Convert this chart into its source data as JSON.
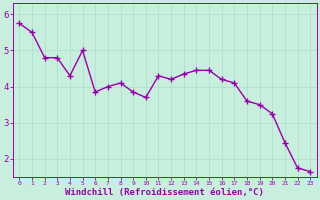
{
  "x": [
    0,
    1,
    2,
    3,
    4,
    5,
    6,
    7,
    8,
    9,
    10,
    11,
    12,
    13,
    14,
    15,
    16,
    17,
    18,
    19,
    20,
    21,
    22,
    23
  ],
  "y": [
    5.75,
    5.5,
    4.8,
    4.8,
    4.3,
    5.0,
    3.85,
    4.0,
    4.1,
    3.85,
    3.7,
    4.3,
    4.2,
    4.35,
    4.45,
    4.45,
    4.2,
    4.1,
    3.6,
    3.5,
    3.25,
    2.45,
    1.75,
    1.65
  ],
  "line_color": "#9900aa",
  "marker": "+",
  "marker_size": 4,
  "linewidth": 1.0,
  "xlabel": "Windchill (Refroidissement éolien,°C)",
  "xlabel_fontsize": 6.5,
  "xlim": [
    -0.5,
    23.5
  ],
  "ylim": [
    1.5,
    6.3
  ],
  "yticks": [
    2,
    3,
    4,
    5,
    6
  ],
  "xticks": [
    0,
    1,
    2,
    3,
    4,
    5,
    6,
    7,
    8,
    9,
    10,
    11,
    12,
    13,
    14,
    15,
    16,
    17,
    18,
    19,
    20,
    21,
    22,
    23
  ],
  "bg_color": "#c8eedd",
  "grid_color": "#aaddcc",
  "tick_color": "#9900aa",
  "spine_color": "#9900aa",
  "xlabel_color": "#9900aa"
}
